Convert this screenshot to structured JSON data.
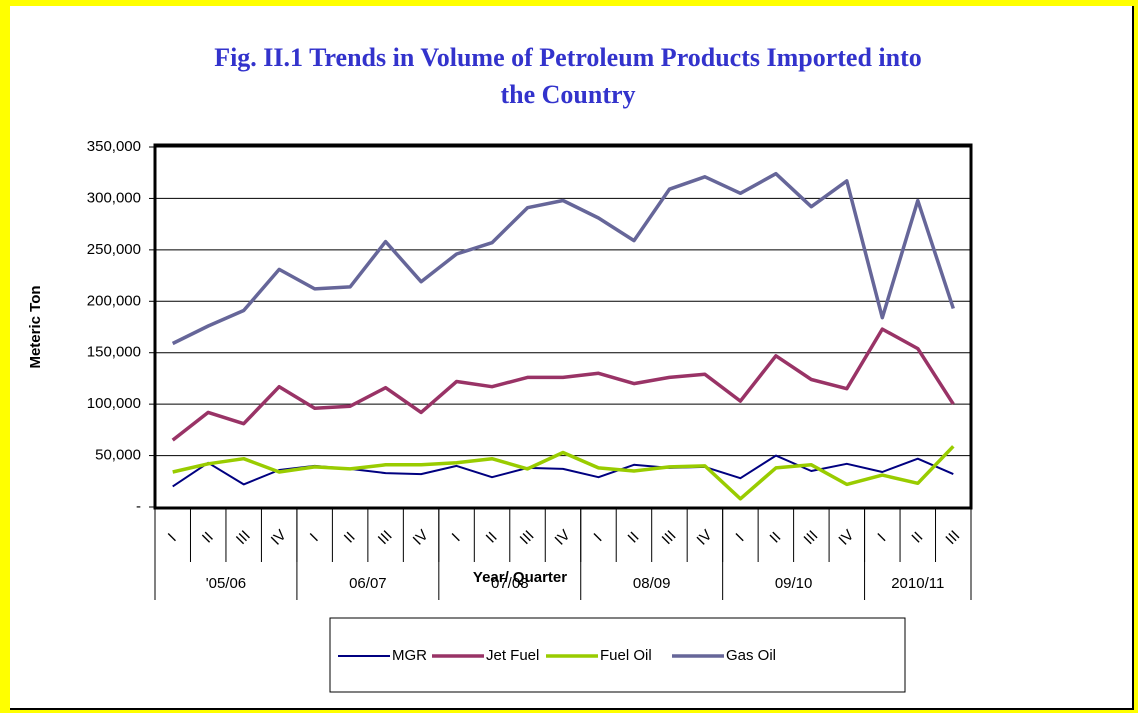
{
  "chart_data": {
    "type": "line",
    "title": [
      "Fig. II.1 Trends in Volume of Petroleum Products Imported into",
      "the Country"
    ],
    "y_label": "Meteric Ton",
    "x_label": "Year/ Quarter",
    "categories": [
      "I",
      "II",
      "III",
      "IV",
      "I",
      "II",
      "III",
      "IV",
      "I",
      "II",
      "III",
      "IV",
      "I",
      "II",
      "III",
      "IV",
      "I",
      "II",
      "III",
      "IV",
      "I",
      "II",
      "III"
    ],
    "groups": [
      {
        "label": "'05/06",
        "count": 4
      },
      {
        "label": "06/07",
        "count": 4
      },
      {
        "label": "07/08",
        "count": 4
      },
      {
        "label": "08/09",
        "count": 4
      },
      {
        "label": "09/10",
        "count": 4
      },
      {
        "label": "2010/11",
        "count": 3
      }
    ],
    "series": [
      {
        "name": "MGR",
        "color": "#000080",
        "values": [
          20000,
          43000,
          22000,
          36000,
          40000,
          37000,
          33000,
          32000,
          40000,
          29000,
          38000,
          37000,
          29000,
          41000,
          38000,
          39000,
          28000,
          50000,
          35000,
          42000,
          34000,
          47000,
          32000
        ]
      },
      {
        "name": "Jet Fuel",
        "color": "#993366",
        "values": [
          65000,
          92000,
          81000,
          117000,
          96000,
          98000,
          116000,
          92000,
          122000,
          117000,
          126000,
          126000,
          130000,
          120000,
          126000,
          129000,
          103000,
          147000,
          124000,
          115000,
          173000,
          154000,
          100000
        ]
      },
      {
        "name": "Fuel Oil",
        "color": "#99cc00",
        "values": [
          34000,
          42000,
          47000,
          34000,
          39000,
          37000,
          41000,
          41000,
          43000,
          47000,
          37000,
          53000,
          38000,
          35000,
          39000,
          40000,
          8000,
          38000,
          41000,
          22000,
          31000,
          23000,
          59000
        ]
      },
      {
        "name": "Gas Oil",
        "color": "#666699",
        "values": [
          159000,
          176000,
          191000,
          231000,
          212000,
          214000,
          258000,
          219000,
          246000,
          257000,
          291000,
          298000,
          281000,
          259000,
          309000,
          321000,
          305000,
          324000,
          292000,
          317000,
          184000,
          298000,
          193000
        ]
      }
    ],
    "ylim": [
      0,
      350000
    ],
    "yticks": [
      {
        "value": 0,
        "label": "-"
      },
      {
        "value": 50000,
        "label": "50,000"
      },
      {
        "value": 100000,
        "label": "100,000"
      },
      {
        "value": 150000,
        "label": "150,000"
      },
      {
        "value": 200000,
        "label": "200,000"
      },
      {
        "value": 250000,
        "label": "250,000"
      },
      {
        "value": 300000,
        "label": "300,000"
      },
      {
        "value": 350000,
        "label": "350,000"
      }
    ],
    "grid": true,
    "legend": "bottom"
  }
}
